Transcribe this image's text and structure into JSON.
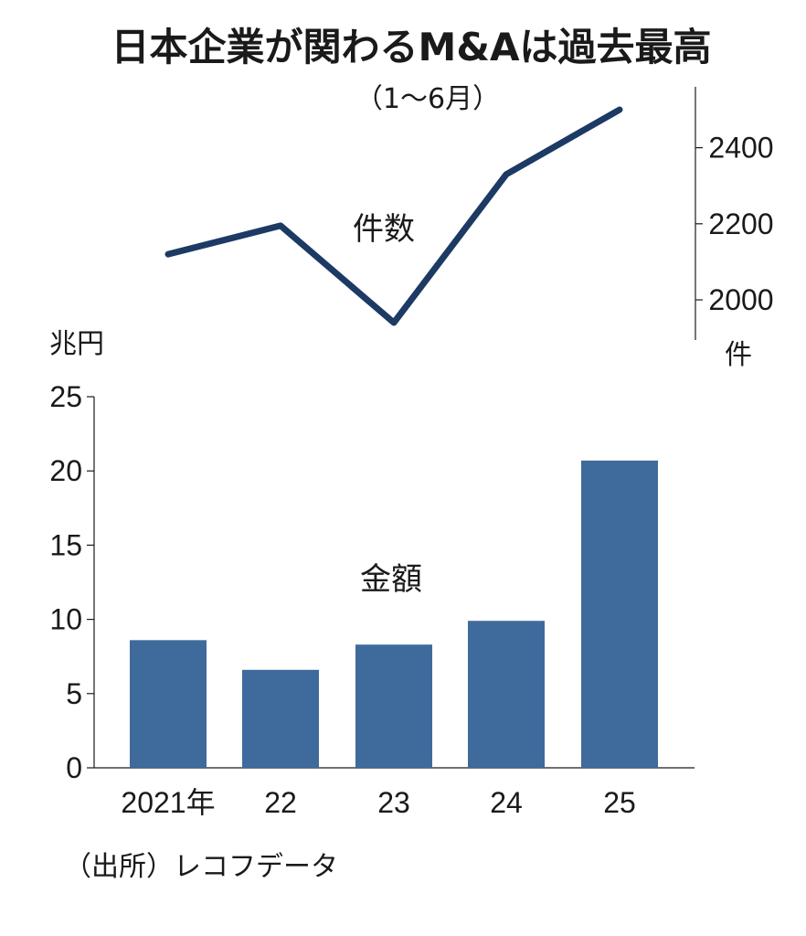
{
  "header": {
    "title": "日本企業が関わるM&Aは過去最高",
    "subtitle": "（1～6月）"
  },
  "chart_data": {
    "type": "bar",
    "categories": [
      "2021年",
      "22",
      "23",
      "24",
      "25"
    ],
    "bar_series": {
      "name": "金額",
      "unit": "兆円",
      "values": [
        8.6,
        6.6,
        8.3,
        9.9,
        20.7
      ],
      "ylim": [
        0,
        25
      ],
      "yticks": [
        0,
        5,
        10,
        15,
        20,
        25
      ],
      "color": "#3f6a9c"
    },
    "line_series": {
      "name": "件数",
      "unit": "件",
      "values": [
        2120,
        2195,
        1940,
        2330,
        2500
      ],
      "yticks": [
        2000,
        2200,
        2400
      ],
      "color": "#1c3a63"
    },
    "source": "（出所）レコフデータ"
  }
}
